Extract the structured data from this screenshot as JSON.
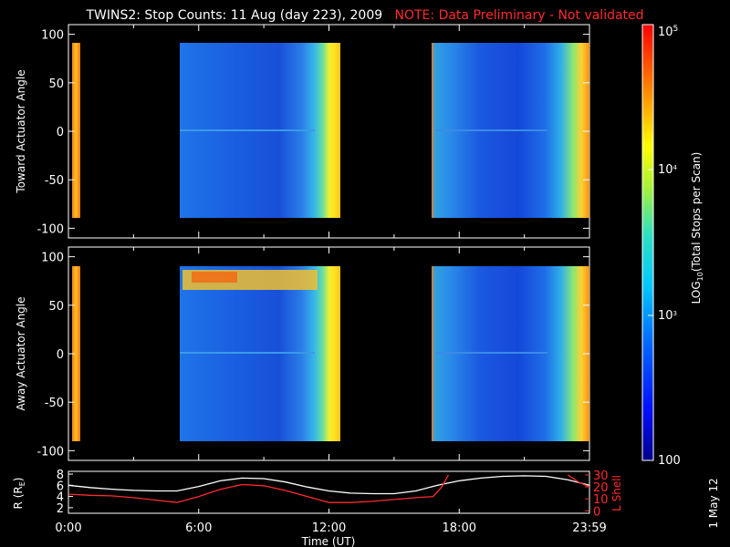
{
  "chart_data": [
    {
      "type": "heatmap",
      "title": "TWINS2: Stop Counts: 11 Aug (day 223), 2009",
      "note": "NOTE: Data Preliminary - Not validated",
      "panel": "top",
      "ylabel": "Toward Actuator Angle",
      "ylim": [
        -110,
        110
      ],
      "yticks": [
        "100",
        "50",
        "0",
        "-50",
        "-100"
      ],
      "x_range_hours": [
        0,
        24
      ],
      "data_blocks_hours": [
        [
          0,
          0.2
        ],
        [
          5.1,
          12.5
        ],
        [
          16.7,
          24
        ]
      ]
    },
    {
      "type": "heatmap",
      "panel": "middle",
      "ylabel": "Away Actuator Angle",
      "ylim": [
        -110,
        110
      ],
      "yticks": [
        "100",
        "50",
        "0",
        "-50",
        "-100"
      ],
      "x_range_hours": [
        0,
        24
      ],
      "data_blocks_hours": [
        [
          0,
          0.2
        ],
        [
          5.1,
          12.5
        ],
        [
          16.7,
          24
        ]
      ]
    },
    {
      "type": "line",
      "panel": "bottom",
      "xlabel": "Time (UT)",
      "xticks": [
        "0:00",
        "6:00",
        "12:00",
        "18:00",
        "23:59"
      ],
      "ylabel_left": "R (Re)",
      "yticks_left": [
        "8",
        "6",
        "4",
        "2"
      ],
      "ylabel_right": "L Shell",
      "yticks_right": [
        "30",
        "20",
        "10",
        "0"
      ],
      "series": [
        {
          "name": "R (Re)",
          "color": "#ffffff",
          "x": [
            0,
            1,
            2,
            3,
            4,
            5,
            6,
            7,
            8,
            9,
            10,
            11,
            12,
            13,
            14,
            15,
            16,
            17,
            18,
            19,
            20,
            21,
            22,
            23,
            24
          ],
          "y": [
            6.0,
            5.6,
            5.3,
            5.1,
            5.0,
            5.0,
            5.8,
            6.8,
            7.3,
            7.2,
            6.6,
            5.7,
            5.0,
            4.6,
            4.5,
            4.5,
            5.0,
            6.0,
            6.8,
            7.3,
            7.6,
            7.7,
            7.6,
            7.0,
            6.0
          ]
        },
        {
          "name": "L Shell",
          "color": "#ff2a2a",
          "x": [
            0,
            1,
            2,
            3,
            4,
            5,
            6,
            7,
            8,
            9,
            10,
            11,
            12,
            13,
            14,
            15,
            16,
            16.8,
            17.2,
            17.5
          ],
          "y": [
            14,
            13,
            12.5,
            11,
            9,
            7,
            12,
            18,
            22,
            21,
            17,
            12,
            7,
            7,
            8,
            9.5,
            11,
            12,
            20,
            30
          ]
        },
        {
          "name": "L Shell (end)",
          "color": "#ff2a2a",
          "x": [
            23.0,
            23.5,
            24
          ],
          "y": [
            30,
            24,
            20
          ]
        }
      ]
    }
  ],
  "colorbar": {
    "label_main": "LOG",
    "label_sub": "10",
    "label_rest": "(Total Stops per Scan)",
    "top_label": "10",
    "top_label_exp": "5",
    "mid_label": "10",
    "mid_label_exp": "4",
    "low_label": "10",
    "low_label_exp": "3",
    "bottom_label": "100",
    "scale": "log",
    "range": [
      100,
      100000
    ]
  },
  "footer_date": "1 May 12",
  "r_label_main": "R (R",
  "r_label_sub": "E",
  "r_label_end": ")"
}
